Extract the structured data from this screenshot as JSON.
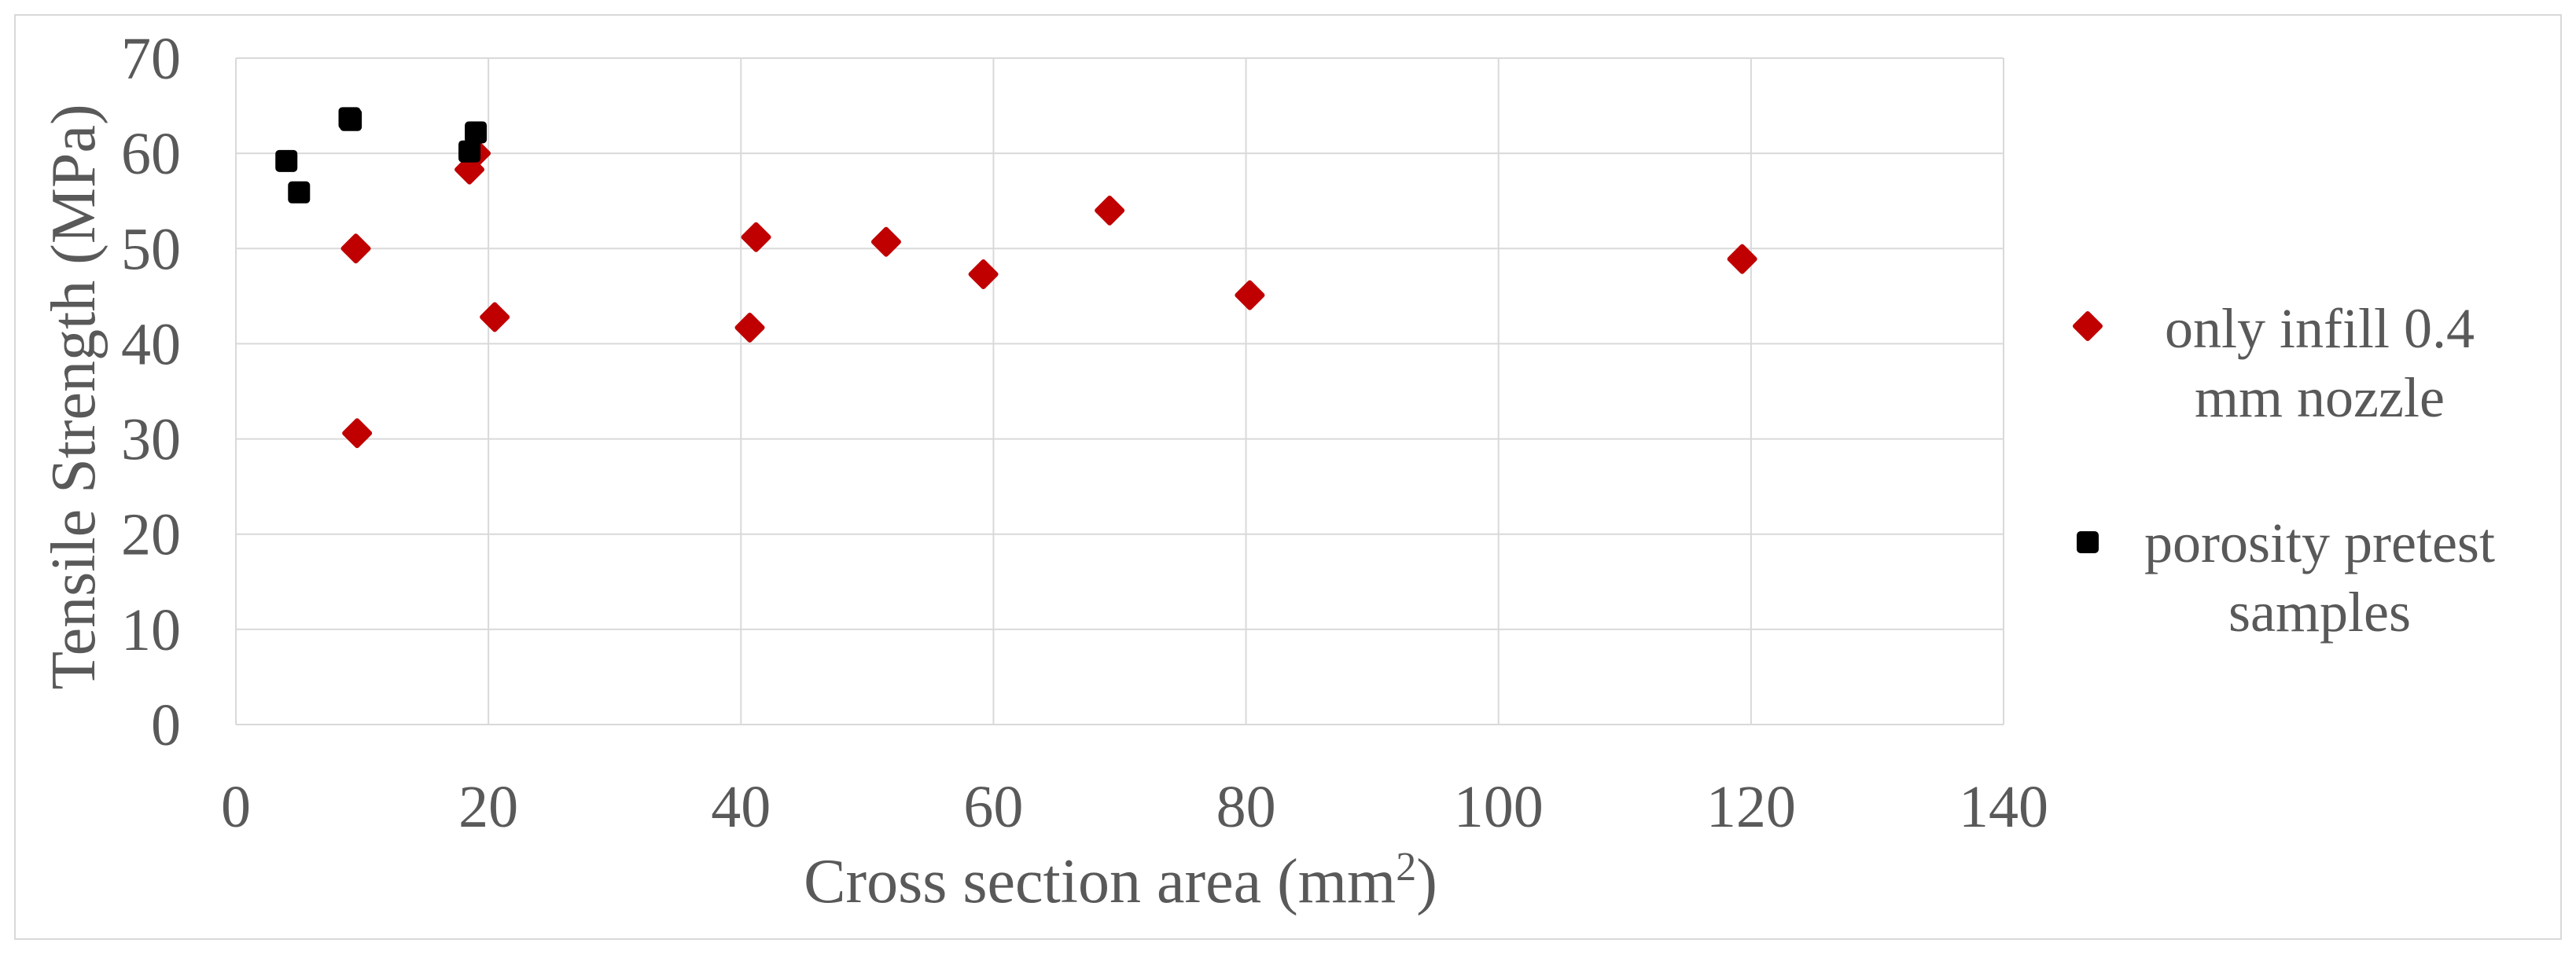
{
  "chart_data": {
    "type": "scatter",
    "xlabel": "Cross section area (mm",
    "xlabel_superscript": "2",
    "xlabel_suffix": ")",
    "ylabel": "Tensile Strength (MPa)",
    "xlim": [
      0,
      140
    ],
    "ylim": [
      0,
      70
    ],
    "x_ticks": [
      0,
      20,
      40,
      60,
      80,
      100,
      120,
      140
    ],
    "y_ticks": [
      0,
      10,
      20,
      30,
      40,
      50,
      60,
      70
    ],
    "grid": true,
    "legend_position": "right",
    "series": [
      {
        "name": "only infill 0.4 mm nozzle",
        "legend_lines": [
          "only infill 0.4",
          "mm nozzle"
        ],
        "marker": "diamond",
        "color": "#c00000",
        "points": [
          [
            9.5,
            50.0
          ],
          [
            9.6,
            30.6
          ],
          [
            18.5,
            58.3
          ],
          [
            19.0,
            60.0
          ],
          [
            20.5,
            42.8
          ],
          [
            40.7,
            41.7
          ],
          [
            41.2,
            51.2
          ],
          [
            51.5,
            50.7
          ],
          [
            59.2,
            47.3
          ],
          [
            69.2,
            54.0
          ],
          [
            80.3,
            45.1
          ],
          [
            119.3,
            48.9
          ]
        ]
      },
      {
        "name": "porosity pretest samples",
        "legend_lines": [
          "porosity pretest",
          "samples"
        ],
        "marker": "square",
        "color": "#000000",
        "points": [
          [
            4.0,
            59.2
          ],
          [
            5.0,
            55.9
          ],
          [
            9.0,
            63.7
          ],
          [
            9.1,
            63.5
          ],
          [
            18.5,
            60.2
          ],
          [
            19.0,
            62.2
          ]
        ]
      }
    ]
  }
}
